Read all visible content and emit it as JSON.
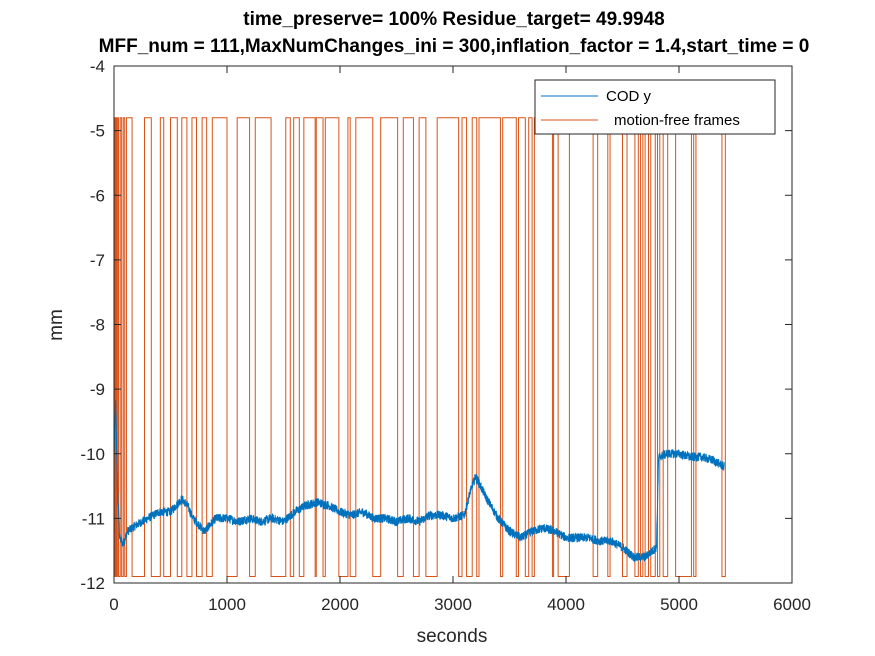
{
  "chart_data": {
    "type": "line",
    "title_line1": "time_preserve= 100%  Residue_target= 49.9948",
    "title_line2": "MFF_num = 111,MaxNumChanges_ini = 300,inflation_factor = 1.4,start_time = 0",
    "xlabel": "seconds",
    "ylabel": "mm",
    "xlim": [
      0,
      6000
    ],
    "ylim": [
      -12,
      -4
    ],
    "x_ticks": [
      "0",
      "1000",
      "2000",
      "3000",
      "4000",
      "5000",
      "6000"
    ],
    "y_ticks": [
      "-4",
      "-5",
      "-6",
      "-7",
      "-8",
      "-9",
      "-10",
      "-11",
      "-12"
    ],
    "grid": false,
    "legend_position": "top-right",
    "colors": {
      "cod_y": "#0072BD",
      "motion_free": "#D95319"
    },
    "series": [
      {
        "name": "COD y",
        "color": "#0072BD",
        "x": [
          0,
          15,
          30,
          50,
          80,
          120,
          200,
          300,
          400,
          500,
          600,
          650,
          700,
          750,
          800,
          900,
          1000,
          1100,
          1200,
          1300,
          1400,
          1500,
          1600,
          1700,
          1800,
          1900,
          2000,
          2100,
          2200,
          2300,
          2400,
          2500,
          2600,
          2700,
          2800,
          2900,
          3000,
          3100,
          3150,
          3200,
          3300,
          3400,
          3500,
          3600,
          3700,
          3800,
          3900,
          4000,
          4100,
          4200,
          4300,
          4400,
          4500,
          4600,
          4700,
          4800,
          4820,
          4900,
          5000,
          5100,
          5200,
          5300,
          5400
        ],
        "y": [
          -10.0,
          -9.2,
          -10.5,
          -11.3,
          -11.4,
          -11.2,
          -11.1,
          -11.0,
          -10.9,
          -10.9,
          -10.7,
          -10.8,
          -11.0,
          -11.1,
          -11.2,
          -11.0,
          -11.0,
          -11.05,
          -11.0,
          -11.05,
          -11.0,
          -11.05,
          -10.9,
          -10.8,
          -10.75,
          -10.8,
          -10.9,
          -10.95,
          -10.9,
          -11.0,
          -11.0,
          -11.05,
          -11.0,
          -11.05,
          -10.95,
          -10.95,
          -11.0,
          -10.95,
          -10.6,
          -10.35,
          -10.7,
          -11.0,
          -11.2,
          -11.3,
          -11.2,
          -11.15,
          -11.2,
          -11.3,
          -11.3,
          -11.3,
          -11.35,
          -11.35,
          -11.45,
          -11.6,
          -11.6,
          -11.45,
          -10.05,
          -10.0,
          -10.0,
          -10.05,
          -10.05,
          -10.1,
          -10.2
        ],
        "noise": 0.07
      },
      {
        "name": "motion-free frames",
        "color": "#D95319",
        "high_value": -4.8,
        "low_value": -11.9,
        "switch_times": [
          8,
          15,
          22,
          30,
          40,
          55,
          68,
          82,
          95,
          110,
          160,
          270,
          330,
          410,
          440,
          500,
          560,
          600,
          645,
          690,
          730,
          780,
          820,
          870,
          1000,
          1090,
          1200,
          1250,
          1390,
          1520,
          1560,
          1590,
          1640,
          1680,
          1780,
          1790,
          1850,
          1870,
          1990,
          2070,
          2090,
          2140,
          2290,
          2360,
          2510,
          2560,
          2650,
          2700,
          2760,
          2860,
          3050,
          3080,
          3120,
          3170,
          3210,
          3230,
          3420,
          3440,
          3560,
          3580,
          3640,
          3670,
          3700,
          3720,
          3880,
          3890,
          3930,
          4030,
          4240,
          4280,
          4370,
          4390,
          4500,
          4540,
          4610,
          4640,
          4660,
          4680,
          4700,
          4730,
          4750,
          4790,
          4810,
          4830,
          4860,
          4900,
          4970,
          5110,
          5130,
          5150,
          5380,
          5410
        ]
      }
    ]
  }
}
